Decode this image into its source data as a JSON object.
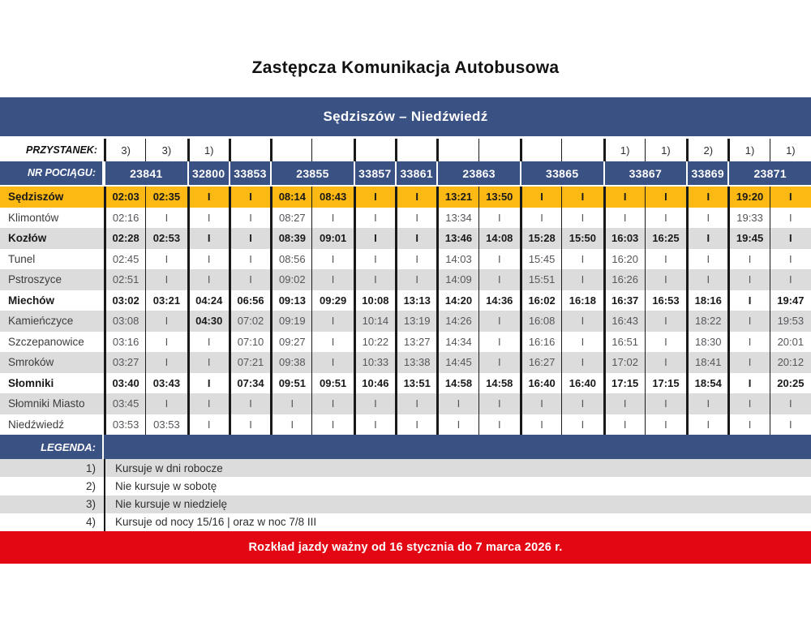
{
  "title": "Zastępcza Komunikacja Autobusowa",
  "route": "Sędziszów – Niedźwiedź",
  "validity": "Rozkład jazdy ważny od 16 stycznia do 7 marca 2026 r.",
  "colors": {
    "header_blue": "#3a5184",
    "highlight_yellow": "#fcb813",
    "row_gray": "#dcdcdc",
    "validity_red": "#e30613"
  },
  "table": {
    "stop_label": "PRZYSTANEK:",
    "train_label": "NR POCIĄGU:",
    "no_service_symbol": "I",
    "stop_markers": [
      "3)",
      "3)",
      "1)",
      "",
      "",
      "",
      "",
      "",
      "",
      "",
      "",
      "",
      "1)",
      "1)",
      "2)",
      "1)",
      "1)"
    ],
    "trains": [
      {
        "number": "23841",
        "span": 2
      },
      {
        "number": "32800",
        "span": 1
      },
      {
        "number": "33853",
        "span": 1
      },
      {
        "number": "23855",
        "span": 2
      },
      {
        "number": "33857",
        "span": 1
      },
      {
        "number": "33861",
        "span": 1
      },
      {
        "number": "23863",
        "span": 2
      },
      {
        "number": "33865",
        "span": 2
      },
      {
        "number": "33867",
        "span": 2
      },
      {
        "number": "33869",
        "span": 1
      },
      {
        "number": "23871",
        "span": 2
      }
    ],
    "rows": [
      {
        "station": "Sędziszów",
        "style": "highlight",
        "bold": true,
        "times": [
          "02:03",
          "02:35",
          "I",
          "I",
          "08:14",
          "08:43",
          "I",
          "I",
          "13:21",
          "13:50",
          "I",
          "I",
          "I",
          "I",
          "I",
          "19:20",
          "I"
        ]
      },
      {
        "station": "Klimontów",
        "style": "white",
        "bold": false,
        "times": [
          "02:16",
          "I",
          "I",
          "I",
          "08:27",
          "I",
          "I",
          "I",
          "13:34",
          "I",
          "I",
          "I",
          "I",
          "I",
          "I",
          "19:33",
          "I"
        ]
      },
      {
        "station": "Kozłów",
        "style": "gray",
        "bold": true,
        "times": [
          "02:28",
          "02:53",
          "I",
          "I",
          "08:39",
          "09:01",
          "I",
          "I",
          "13:46",
          "14:08",
          "15:28",
          "15:50",
          "16:03",
          "16:25",
          "I",
          "19:45",
          "I"
        ]
      },
      {
        "station": "Tunel",
        "style": "white",
        "bold": false,
        "times": [
          "02:45",
          "I",
          "I",
          "I",
          "08:56",
          "I",
          "I",
          "I",
          "14:03",
          "I",
          "15:45",
          "I",
          "16:20",
          "I",
          "I",
          "I",
          "I"
        ]
      },
      {
        "station": "Pstroszyce",
        "style": "gray",
        "bold": false,
        "times": [
          "02:51",
          "I",
          "I",
          "I",
          "09:02",
          "I",
          "I",
          "I",
          "14:09",
          "I",
          "15:51",
          "I",
          "16:26",
          "I",
          "I",
          "I",
          "I"
        ]
      },
      {
        "station": "Miechów",
        "style": "white",
        "bold": true,
        "times": [
          "03:02",
          "03:21",
          "04:24",
          "06:56",
          "09:13",
          "09:29",
          "10:08",
          "13:13",
          "14:20",
          "14:36",
          "16:02",
          "16:18",
          "16:37",
          "16:53",
          "18:16",
          "I",
          "19:47"
        ]
      },
      {
        "station": "Kamieńczyce",
        "style": "gray",
        "bold": false,
        "bold_cells": [
          2
        ],
        "times": [
          "03:08",
          "I",
          "04:30",
          "07:02",
          "09:19",
          "I",
          "10:14",
          "13:19",
          "14:26",
          "I",
          "16:08",
          "I",
          "16:43",
          "I",
          "18:22",
          "I",
          "19:53"
        ]
      },
      {
        "station": "Szczepanowice",
        "style": "white",
        "bold": false,
        "times": [
          "03:16",
          "I",
          "I",
          "07:10",
          "09:27",
          "I",
          "10:22",
          "13:27",
          "14:34",
          "I",
          "16:16",
          "I",
          "16:51",
          "I",
          "18:30",
          "I",
          "20:01"
        ]
      },
      {
        "station": "Smroków",
        "style": "gray",
        "bold": false,
        "times": [
          "03:27",
          "I",
          "I",
          "07:21",
          "09:38",
          "I",
          "10:33",
          "13:38",
          "14:45",
          "I",
          "16:27",
          "I",
          "17:02",
          "I",
          "18:41",
          "I",
          "20:12"
        ]
      },
      {
        "station": "Słomniki",
        "style": "white",
        "bold": true,
        "times": [
          "03:40",
          "03:43",
          "I",
          "07:34",
          "09:51",
          "09:51",
          "10:46",
          "13:51",
          "14:58",
          "14:58",
          "16:40",
          "16:40",
          "17:15",
          "17:15",
          "18:54",
          "I",
          "20:25"
        ]
      },
      {
        "station": "Słomniki Miasto",
        "style": "gray",
        "bold": false,
        "times": [
          "03:45",
          "I",
          "I",
          "I",
          "I",
          "I",
          "I",
          "I",
          "I",
          "I",
          "I",
          "I",
          "I",
          "I",
          "I",
          "I",
          "I"
        ]
      },
      {
        "station": "Niedźwiedź",
        "style": "white",
        "bold": false,
        "times": [
          "03:53",
          "03:53",
          "I",
          "I",
          "I",
          "I",
          "I",
          "I",
          "I",
          "I",
          "I",
          "I",
          "I",
          "I",
          "I",
          "I",
          "I"
        ]
      }
    ]
  },
  "legend": {
    "label": "LEGENDA:",
    "items": [
      {
        "marker": "1)",
        "text": "Kursuje w dni robocze"
      },
      {
        "marker": "2)",
        "text": "Nie kursuje w sobotę"
      },
      {
        "marker": "3)",
        "text": "Nie kursuje w niedzielę"
      },
      {
        "marker": "4)",
        "text": "Kursuje od nocy 15/16  |  oraz w noc 7/8 III"
      }
    ]
  }
}
